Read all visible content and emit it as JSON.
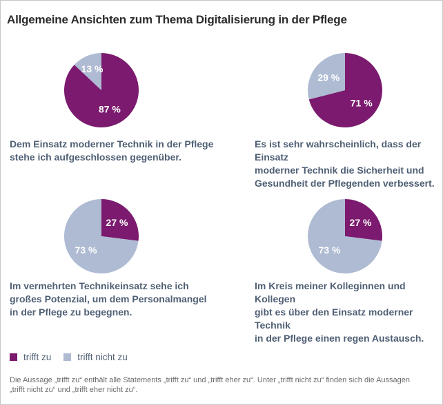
{
  "title": "Allgemeine Ansichten zum Thema Digitalisierung in der Pflege",
  "colors": {
    "trifft_zu": "#7b1a6e",
    "trifft_nicht_zu": "#aebbd2",
    "label_on_purple": "#ffffff",
    "label_on_blue": "#ffffff"
  },
  "chart_data": [
    {
      "type": "pie",
      "categories": [
        "trifft zu",
        "trifft nicht zu"
      ],
      "values": [
        87,
        13
      ],
      "labels": [
        "87 %",
        "13 %"
      ],
      "statement": [
        "Dem Einsatz moderner Technik in der Pflege",
        "stehe ich aufgeschlossen gegenüber."
      ]
    },
    {
      "type": "pie",
      "categories": [
        "trifft zu",
        "trifft nicht zu"
      ],
      "values": [
        71,
        29
      ],
      "labels": [
        "71 %",
        "29 %"
      ],
      "statement": [
        "Es ist sehr wahrscheinlich, dass der Einsatz",
        "moderner Technik die Sicherheit und",
        "Gesundheit der Pflegenden verbessert."
      ]
    },
    {
      "type": "pie",
      "categories": [
        "trifft zu",
        "trifft nicht zu"
      ],
      "values": [
        27,
        73
      ],
      "labels": [
        "27 %",
        "73 %"
      ],
      "statement": [
        "Im vermehrten Technikeinsatz sehe ich",
        "großes Potenzial, um dem Personalmangel",
        "in der Pflege zu begegnen."
      ]
    },
    {
      "type": "pie",
      "categories": [
        "trifft zu",
        "trifft nicht zu"
      ],
      "values": [
        27,
        73
      ],
      "labels": [
        "27 %",
        "73 %"
      ],
      "statement": [
        "Im Kreis meiner Kolleginnen und Kollegen",
        "gibt es über den Einsatz moderner Technik",
        "in der Pflege einen regen Austausch."
      ]
    }
  ],
  "legend": {
    "items": [
      {
        "label": "trifft zu",
        "color": "#7b1a6e"
      },
      {
        "label": "trifft nicht zu",
        "color": "#aebbd2"
      }
    ]
  },
  "footnote": {
    "line1": "Die Aussage „trifft zu“ enthält alle Statements „trifft zu“ und „trifft eher zu“. Unter „trifft nicht zu“ finden sich die Aussagen",
    "line2": "„trifft nicht zu“ und „trifft eher nicht zu“."
  }
}
